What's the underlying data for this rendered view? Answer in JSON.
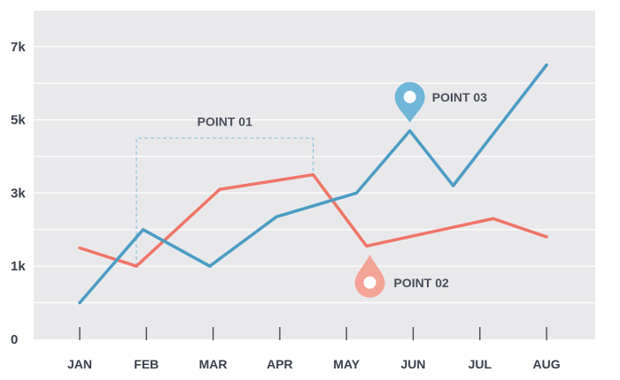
{
  "chart_data": {
    "type": "line",
    "categories": [
      "JAN",
      "FEB",
      "MAR",
      "APR",
      "MAY",
      "JUN",
      "JUL",
      "AUG"
    ],
    "y_ticks": [
      "0",
      "1k",
      "3k",
      "5k",
      "7k"
    ],
    "ylim": [
      0,
      8
    ],
    "grid": true,
    "series": [
      {
        "color": "#f07566",
        "points": [
          {
            "x": 0.0,
            "y": 2.5
          },
          {
            "x": 0.85,
            "y": 2.0
          },
          {
            "x": 2.1,
            "y": 4.1
          },
          {
            "x": 3.5,
            "y": 4.5
          },
          {
            "x": 4.3,
            "y": 2.55
          },
          {
            "x": 6.2,
            "y": 3.3
          },
          {
            "x": 7.0,
            "y": 2.8
          }
        ]
      },
      {
        "color": "#4b9cc4",
        "points": [
          {
            "x": 0.0,
            "y": 1.0
          },
          {
            "x": 0.95,
            "y": 3.0
          },
          {
            "x": 1.95,
            "y": 2.0
          },
          {
            "x": 2.95,
            "y": 3.35
          },
          {
            "x": 4.15,
            "y": 4.0
          },
          {
            "x": 4.95,
            "y": 5.7
          },
          {
            "x": 5.6,
            "y": 4.2
          },
          {
            "x": 7.0,
            "y": 7.5
          }
        ]
      }
    ],
    "annotations": {
      "point01": {
        "label": "POINT 01",
        "x_start": 0.85,
        "x_end": 3.5,
        "y_top": 5.5
      },
      "point02": {
        "label": "POINT 02",
        "x": 4.35,
        "y": 1.6,
        "color": "#f4a496"
      },
      "point03": {
        "label": "POINT 03",
        "x": 4.95,
        "y": 6.6,
        "color": "#6fb6d8"
      }
    }
  }
}
